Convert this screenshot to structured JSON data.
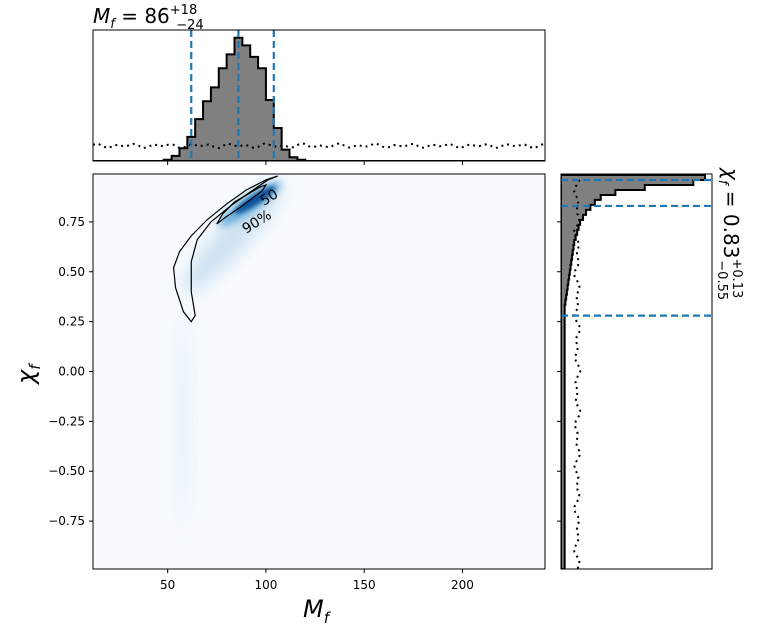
{
  "chart_data": {
    "type": "corner-posterior",
    "marginal_mass": {
      "title_main": "M",
      "title_sub": "f",
      "title_median": "86",
      "title_plus": "+18",
      "title_minus": "−24",
      "xlim": [
        12,
        242
      ],
      "quantiles": [
        62,
        86,
        104
      ],
      "hist_bin_width": 4,
      "hist_x_start": 48,
      "hist_values": [
        0.01,
        0.04,
        0.1,
        0.19,
        0.33,
        0.47,
        0.58,
        0.73,
        0.84,
        0.97,
        0.91,
        0.82,
        0.73,
        0.48,
        0.26,
        0.09,
        0.03,
        0.01
      ],
      "prior_level": 0.12
    },
    "marginal_spin": {
      "title_main": "χ",
      "title_sub": "f",
      "title_median": "0.83",
      "title_plus": "+0.13",
      "title_minus": "−0.55",
      "ylim": [
        -0.99,
        0.99
      ],
      "quantiles": [
        0.28,
        0.83,
        0.96
      ],
      "hist_bin_width": 0.025,
      "hist_top": 0.985,
      "hist_values": [
        0.98,
        0.9,
        0.57,
        0.37,
        0.27,
        0.23,
        0.2,
        0.17,
        0.15,
        0.13,
        0.12,
        0.11,
        0.1,
        0.09,
        0.085,
        0.08,
        0.075,
        0.07,
        0.065,
        0.06,
        0.055,
        0.05,
        0.045,
        0.04,
        0.035,
        0.03
      ],
      "tail_level": 0.025,
      "prior_level": 0.12
    },
    "joint": {
      "xlabel_main": "M",
      "xlabel_sub": "f",
      "ylabel_main": "χ",
      "ylabel_sub": "f",
      "xlim": [
        12,
        242
      ],
      "ylim": [
        -0.99,
        0.99
      ],
      "xticks": [
        "50",
        "100",
        "150",
        "200"
      ],
      "xtick_values": [
        50,
        100,
        150,
        200
      ],
      "yticks": [
        "0.75",
        "0.50",
        "0.25",
        "0.00",
        "−0.25",
        "−0.50",
        "−0.75"
      ],
      "ytick_values": [
        0.75,
        0.5,
        0.25,
        0.0,
        -0.25,
        -0.5,
        -0.75
      ],
      "contour_labels": [
        "90%",
        "50"
      ],
      "contour_90": [
        [
          62,
          0.25
        ],
        [
          58,
          0.3
        ],
        [
          54,
          0.42
        ],
        [
          53,
          0.52
        ],
        [
          56,
          0.6
        ],
        [
          62,
          0.68
        ],
        [
          70,
          0.76
        ],
        [
          80,
          0.84
        ],
        [
          90,
          0.91
        ],
        [
          100,
          0.96
        ],
        [
          106,
          0.98
        ],
        [
          101,
          0.96
        ],
        [
          92,
          0.9
        ],
        [
          82,
          0.83
        ],
        [
          72,
          0.75
        ],
        [
          65,
          0.66
        ],
        [
          62,
          0.55
        ],
        [
          62,
          0.4
        ],
        [
          64,
          0.28
        ]
      ],
      "contour_50": [
        [
          75,
          0.74
        ],
        [
          78,
          0.79
        ],
        [
          84,
          0.85
        ],
        [
          91,
          0.89
        ],
        [
          97,
          0.925
        ],
        [
          100,
          0.935
        ],
        [
          98,
          0.905
        ],
        [
          92,
          0.86
        ],
        [
          85,
          0.81
        ],
        [
          79,
          0.77
        ]
      ],
      "colors": {
        "density": "#08519c",
        "quantile_line": "#1f77b4",
        "hist_fill": "#808080"
      }
    }
  }
}
